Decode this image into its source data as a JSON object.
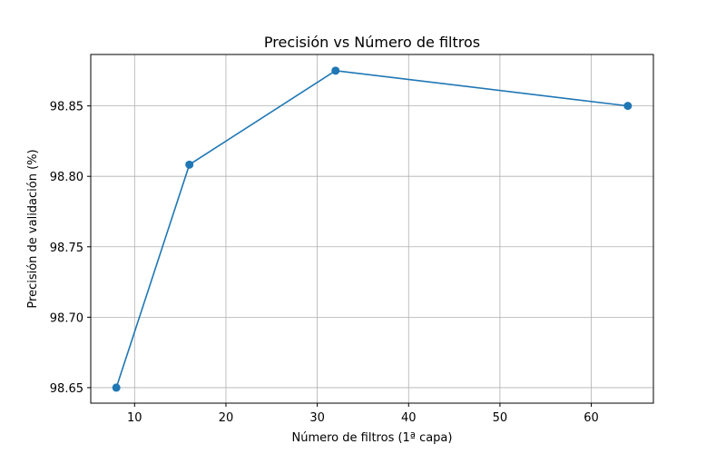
{
  "chart_data": {
    "type": "line",
    "title": "Precisión vs Número de filtros",
    "xlabel": "Número de filtros (1ª capa)",
    "ylabel": "Precisión de validación (%)",
    "x": [
      8,
      16,
      32,
      64
    ],
    "series": [
      {
        "values": [
          98.65,
          98.8083,
          98.875,
          98.85
        ],
        "color": "#1f77b4",
        "marker": "circle"
      }
    ],
    "xlim": [
      5.2,
      66.8
    ],
    "ylim": [
      98.639,
      98.8865
    ],
    "xticks": [
      10,
      20,
      30,
      40,
      50,
      60
    ],
    "xtick_labels": [
      "10",
      "20",
      "30",
      "40",
      "50",
      "60"
    ],
    "yticks": [
      98.65,
      98.7,
      98.75,
      98.8,
      98.85
    ],
    "ytick_labels": [
      "98.65",
      "98.70",
      "98.75",
      "98.80",
      "98.85"
    ],
    "grid": true
  }
}
